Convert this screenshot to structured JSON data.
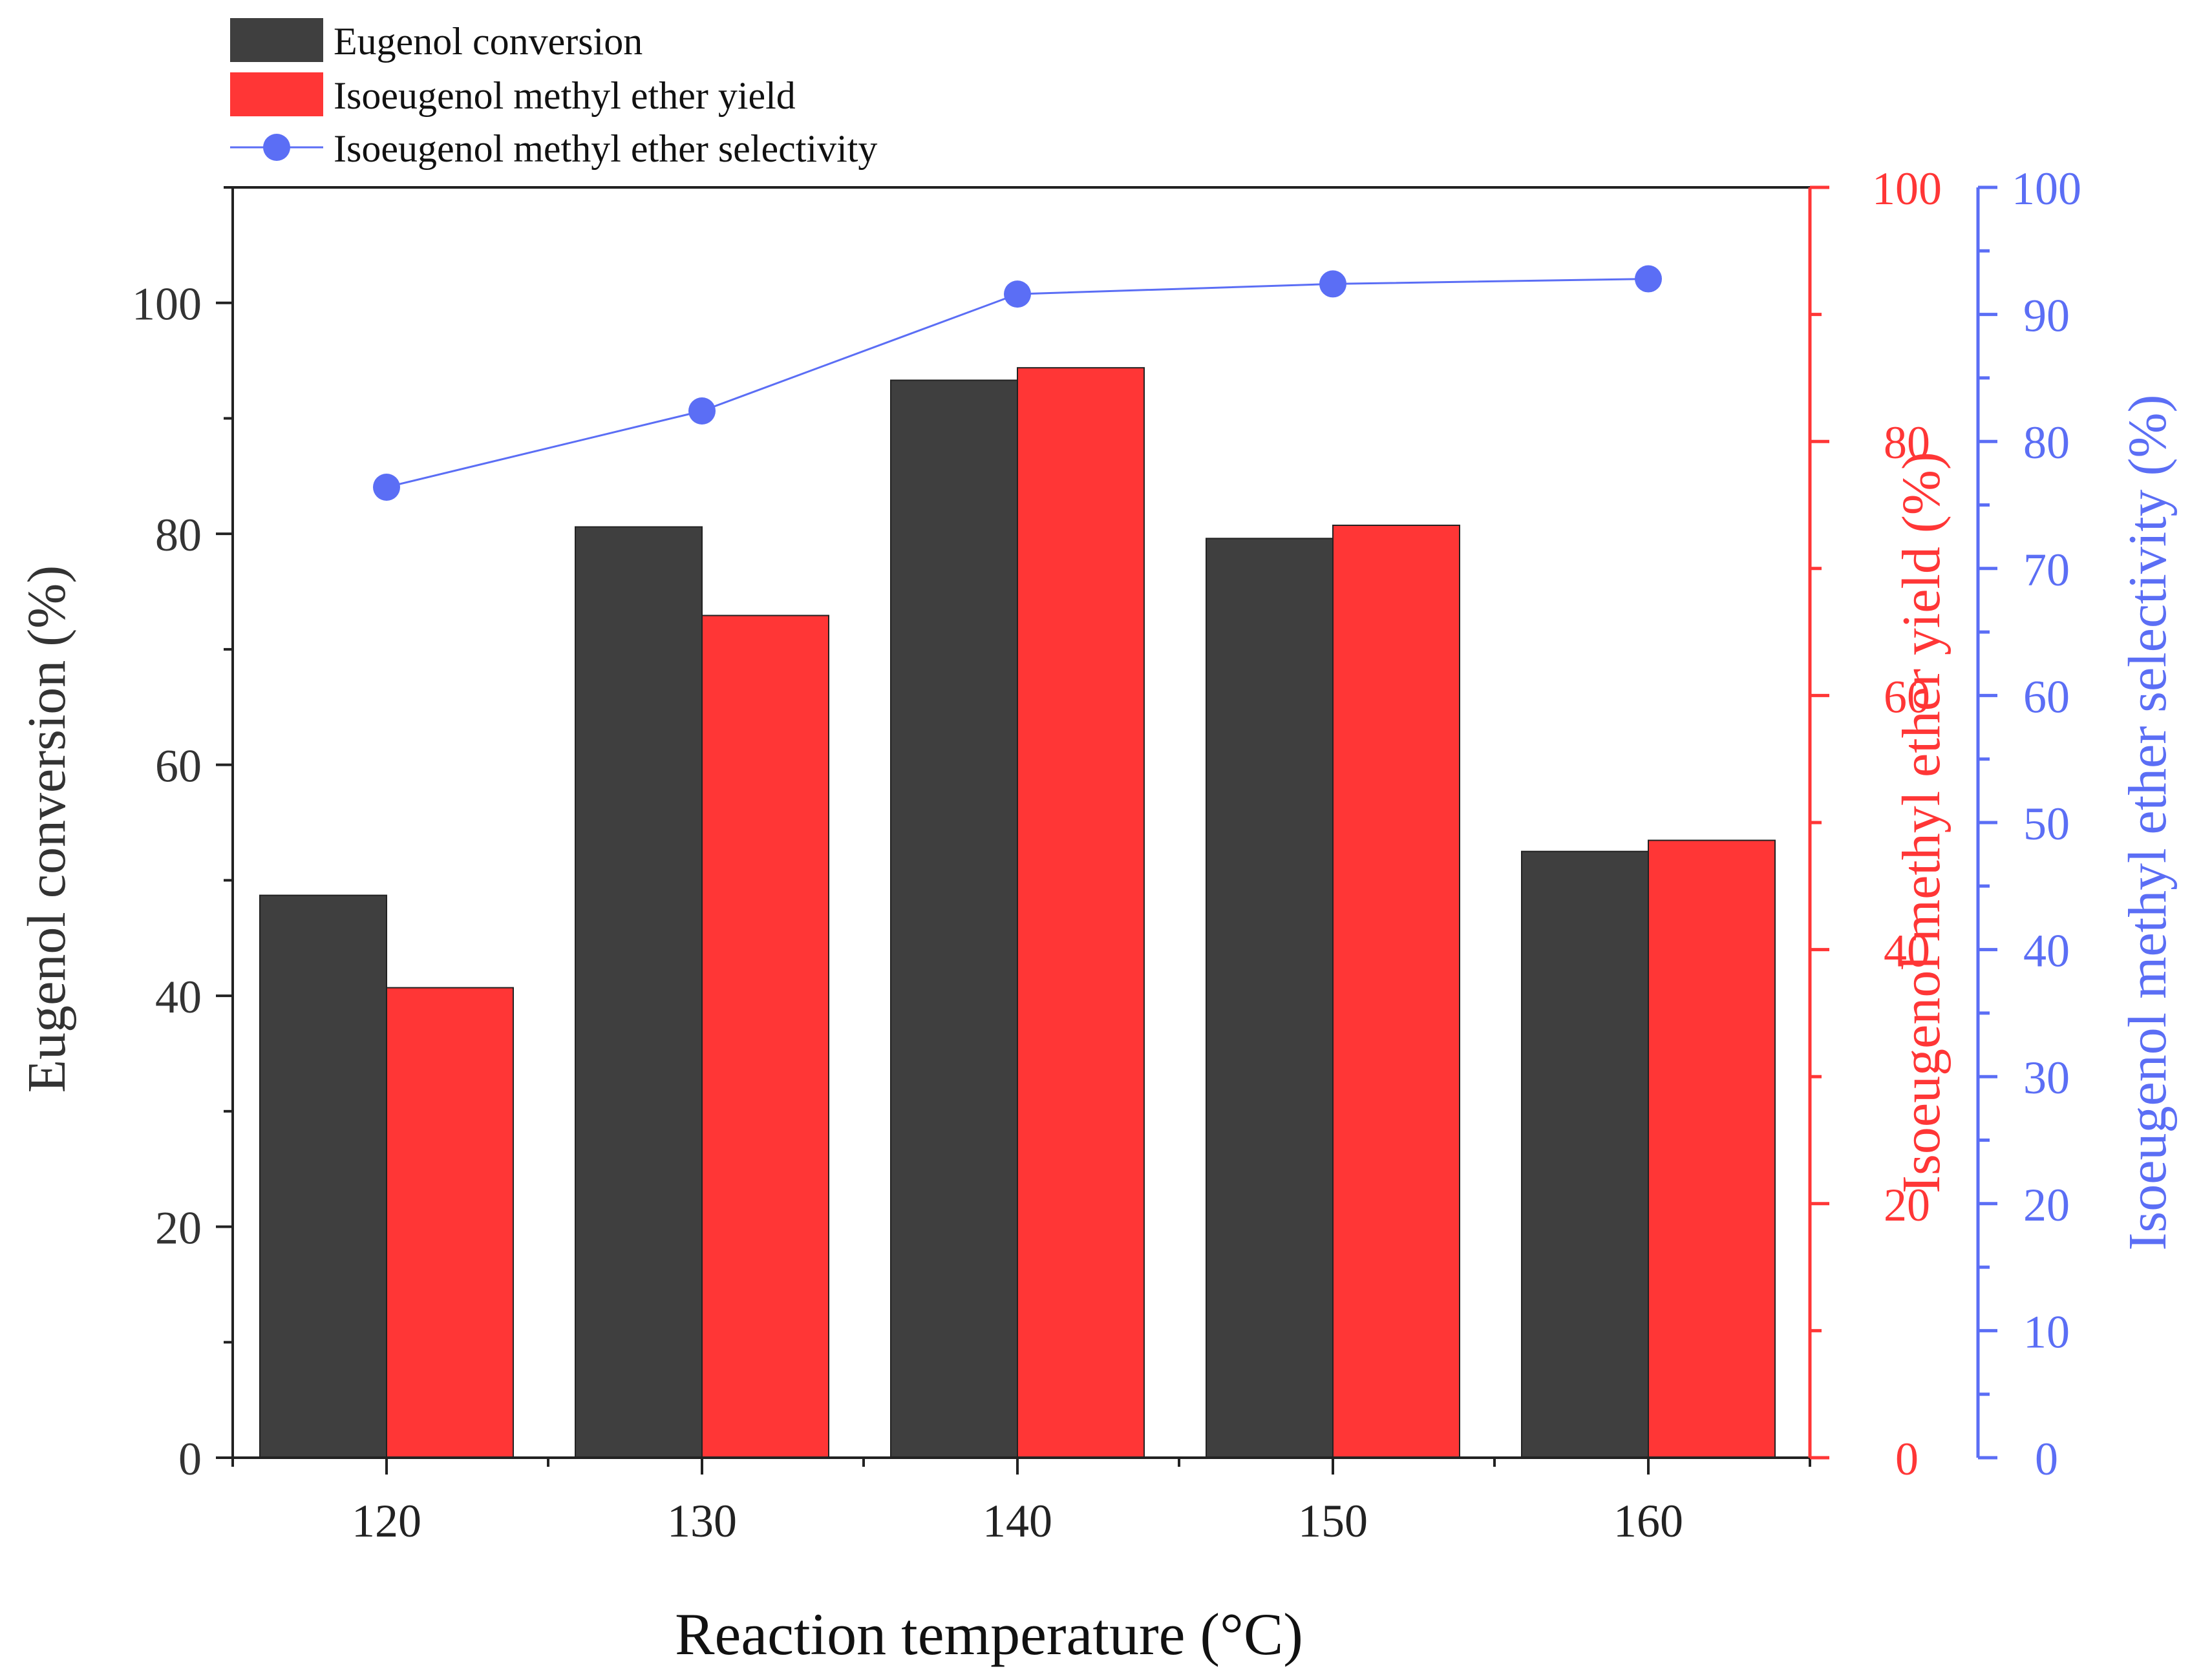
{
  "chart_data": {
    "type": "bar",
    "title": "",
    "xlabel": "Reaction temperature (°C)",
    "categories": [
      "120",
      "130",
      "140",
      "150",
      "160"
    ],
    "series": [
      {
        "name": "Eugenol conversion",
        "axis": "left",
        "kind": "bar",
        "color": "#3f3f3f",
        "values": [
          48.7,
          80.6,
          93.3,
          79.6,
          52.5
        ]
      },
      {
        "name": "Isoeugenol methyl ether yield",
        "axis": "right1",
        "kind": "bar",
        "color": "#ff3636",
        "values": [
          37.0,
          66.3,
          85.8,
          73.4,
          48.6
        ]
      },
      {
        "name": "Isoeugenol methyl ether selectivity",
        "axis": "right2",
        "kind": "line",
        "color": "#5b6ef5",
        "values": [
          76.4,
          82.4,
          91.6,
          92.4,
          92.8
        ]
      }
    ],
    "axes": {
      "left": {
        "label": "Eugenol conversion (%)",
        "ylim": [
          0,
          110
        ],
        "ticks": [
          0,
          20,
          40,
          60,
          80,
          100
        ],
        "color": "#333333"
      },
      "right1": {
        "label": "Isoeugenol methyl ether yield (%)",
        "ylim": [
          0,
          100
        ],
        "ticks": [
          0,
          20,
          40,
          60,
          80,
          100
        ],
        "color": "#ff3636"
      },
      "right2": {
        "label": "Isoeugenol methyl ether selectivity (%)",
        "ylim": [
          0,
          100
        ],
        "ticks": [
          0,
          10,
          20,
          30,
          40,
          50,
          60,
          70,
          80,
          90,
          100
        ],
        "color": "#5b6ef5"
      }
    },
    "legend": {
      "position": "top-left",
      "entries": [
        "Eugenol conversion",
        "Isoeugenol methyl ether yield",
        "Isoeugenol methyl ether selectivity"
      ]
    },
    "grid": false
  }
}
